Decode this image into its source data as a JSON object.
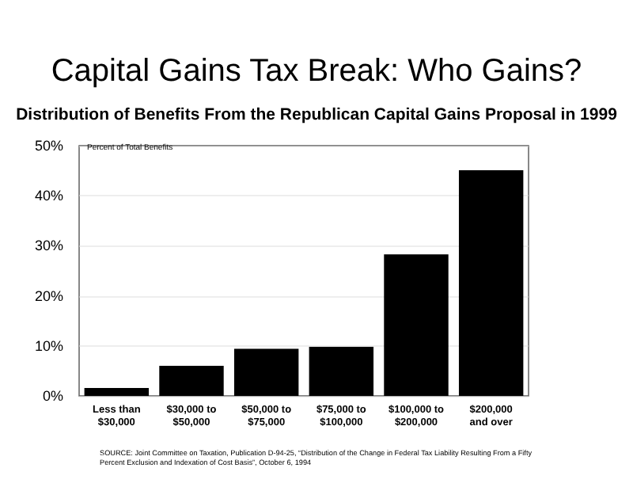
{
  "chart_data": {
    "type": "bar",
    "title": "Capital Gains Tax Break: Who Gains?",
    "subtitle": "Distribution of Benefits From the Republican Capital Gains Proposal in 1999",
    "ylabel": "Percent of Total Benefits",
    "categories": [
      "Less than\n$30,000",
      "$30,000 to\n$50,000",
      "$50,000 to\n$75,000",
      "$75,000 to\n$100,000",
      "$100,000 to\n$200,000",
      "$200,000\nand over"
    ],
    "values": [
      1.6,
      6.0,
      9.4,
      9.8,
      28.3,
      45.1
    ],
    "color": "#000000",
    "ylim": [
      0,
      50
    ],
    "yticks": [
      {
        "value": 0,
        "label": "0%"
      },
      {
        "value": 10,
        "label": "10%"
      },
      {
        "value": 20,
        "label": "20%"
      },
      {
        "value": 30,
        "label": "30%"
      },
      {
        "value": 40,
        "label": "40%"
      },
      {
        "value": 50,
        "label": "50%"
      }
    ],
    "grid": "y",
    "annotations": [
      "SOURCE: Joint Committee on Taxation, Publication D-94-25, “Distribution of the Change in Federal Tax Liability Resulting From a Fifty Percent Exclusion and Indexation of Cost Basis”, October 6, 1994"
    ]
  }
}
